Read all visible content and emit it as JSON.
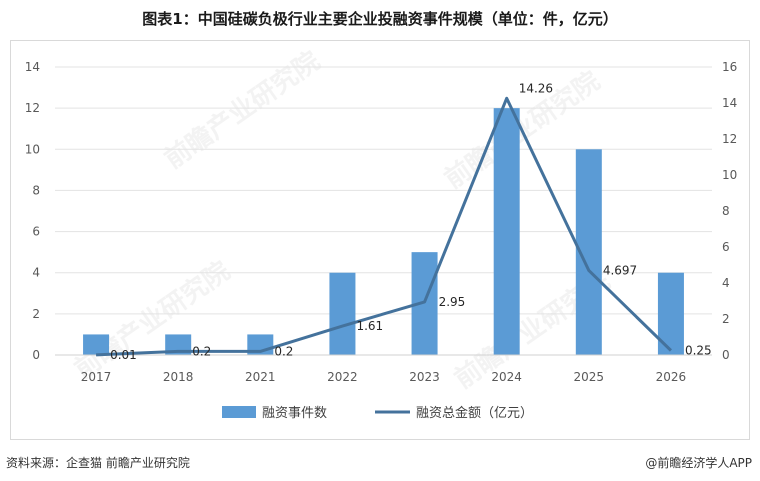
{
  "title": "图表1：中国硅碳负极行业主要企业投融资事件规模（单位：件，亿元）",
  "watermark": "前瞻产业研究院",
  "source": "资料来源：企查猫 前瞻产业研究院",
  "brand": "@前瞻经济学人APP",
  "chart_data": {
    "type": "bar+line",
    "categories": [
      "2017",
      "2018",
      "2021",
      "2022",
      "2023",
      "2024",
      "2025",
      "2026"
    ],
    "series": [
      {
        "name": "融资事件数",
        "type": "bar",
        "axis": "left",
        "values": [
          1,
          1,
          1,
          4,
          5,
          12,
          10,
          4
        ],
        "color": "#5b9bd5"
      },
      {
        "name": "融资总金额（亿元）",
        "type": "line",
        "axis": "right",
        "values": [
          0.01,
          0.2,
          0.2,
          1.61,
          2.95,
          14.26,
          4.697,
          0.25
        ],
        "labels": [
          "0.01",
          "0.2",
          "0.2",
          "1.61",
          "2.95",
          "14.26",
          "4.697",
          "0.25"
        ],
        "color": "#44729c"
      }
    ],
    "y_left": {
      "min": 0,
      "max": 14,
      "ticks": [
        "0",
        "2",
        "4",
        "6",
        "8",
        "10",
        "12",
        "14"
      ]
    },
    "y_right": {
      "min": 0,
      "max": 16,
      "ticks": [
        "0",
        "2",
        "4",
        "6",
        "8",
        "10",
        "12",
        "14",
        "16"
      ]
    },
    "grid": true,
    "legend_position": "bottom"
  }
}
